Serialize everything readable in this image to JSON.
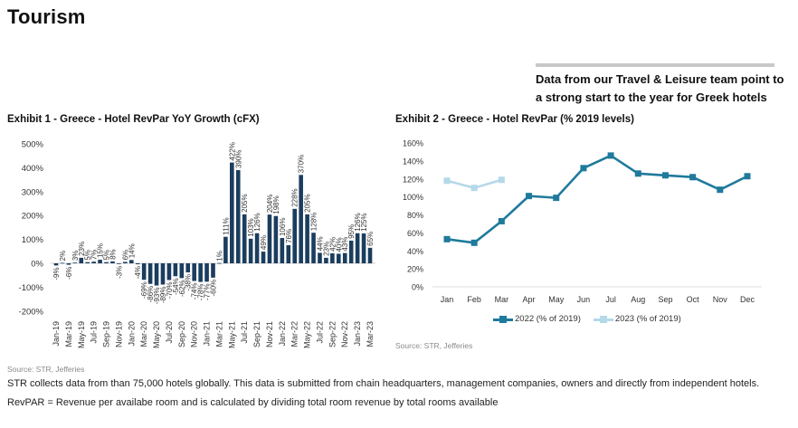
{
  "page": {
    "title": "Tourism",
    "callout": "Data from our Travel & Leisure team point to a strong start to the year for Greek hotels",
    "source_1": "Source: STR, Jefferies",
    "source_2": "Source: STR, Jefferies",
    "note": "STR collects data from than 75,000 hotels globally. This data is submitted from chain headquarters, management companies, owners and directly from independent hotels. RevPAR = Revenue per availabe room and is calculated by dividing total room revenue by total rooms available"
  },
  "colors": {
    "bar": "#1b3d5e",
    "line_2022": "#1f7a9c",
    "line_2023": "#b4d9e8",
    "callout_rule": "#c8c8c8"
  },
  "chart_data": [
    {
      "type": "bar",
      "title": "Exhibit 1 - Greece - Hotel RevPar YoY Growth (cFX)",
      "xlabel": "",
      "ylabel": "",
      "ylim": [
        -200,
        500
      ],
      "yticks": [
        500,
        400,
        300,
        200,
        100,
        0,
        -100,
        -200
      ],
      "ytick_labels": [
        "500%",
        "400%",
        "300%",
        "200%",
        "100%",
        "0%",
        "-100%",
        "-200%"
      ],
      "grid": false,
      "categories": [
        "Jan-19",
        "Feb-19",
        "Mar-19",
        "Apr-19",
        "May-19",
        "Jun-19",
        "Jul-19",
        "Aug-19",
        "Sep-19",
        "Oct-19",
        "Nov-19",
        "Dec-19",
        "Jan-20",
        "Feb-20",
        "Mar-20",
        "Apr-20",
        "May-20",
        "Jun-20",
        "Jul-20",
        "Aug-20",
        "Sep-20",
        "Oct-20",
        "Nov-20",
        "Dec-20",
        "Jan-21",
        "Feb-21",
        "Mar-21",
        "Apr-21",
        "May-21",
        "Jun-21",
        "Jul-21",
        "Aug-21",
        "Sep-21",
        "Oct-21",
        "Nov-21",
        "Dec-21",
        "Jan-22",
        "Feb-22",
        "Mar-22",
        "Apr-22",
        "May-22",
        "Jun-22",
        "Jul-22",
        "Aug-22",
        "Sep-22",
        "Oct-22",
        "Nov-22",
        "Dec-22",
        "Jan-23",
        "Feb-23",
        "Mar-23"
      ],
      "xtick_labels": [
        "Jan-19",
        "Mar-19",
        "May-19",
        "Jul-19",
        "Sep-19",
        "Nov-19",
        "Jan-20",
        "Mar-20",
        "May-20",
        "Jul-20",
        "Sep-20",
        "Nov-20",
        "Jan-21",
        "Mar-21",
        "May-21",
        "Jul-21",
        "Sep-21",
        "Nov-21",
        "Jan-22",
        "Mar-22",
        "May-22",
        "Jul-22",
        "Sep-22",
        "Nov-22",
        "Jan-23",
        "Mar-23"
      ],
      "values": [
        -9,
        2,
        -6,
        3,
        23,
        5,
        7,
        15,
        5,
        8,
        -3,
        6,
        14,
        -4,
        -69,
        -86,
        -93,
        -89,
        -70,
        -54,
        -62,
        -38,
        -74,
        -78,
        -77,
        -60,
        1,
        111,
        422,
        390,
        205,
        103,
        126,
        49,
        204,
        198,
        106,
        76,
        228,
        370,
        205,
        128,
        44,
        23,
        42,
        40,
        43,
        95,
        126,
        125,
        65
      ],
      "data_labels": [
        "-9%",
        "2%",
        "-6%",
        "3%",
        "23%",
        "5%",
        "7%",
        "15%",
        "5%",
        "8%",
        "-3%",
        "6%",
        "14%",
        "-4%",
        "-69%",
        "-86%",
        "-93%",
        "-89%",
        "-70%",
        "-54%",
        "-62%",
        "-38%",
        "-74%",
        "-78%",
        "-77%",
        "-60%",
        "1%",
        "111%",
        "422%",
        "390%",
        "205%",
        "103%",
        "126%",
        "49%",
        "204%",
        "198%",
        "106%",
        "76%",
        "228%",
        "370%",
        "205%",
        "128%",
        "44%",
        "23%",
        "42%",
        "40%",
        "43%",
        "95%",
        "126%",
        "125%",
        "65%"
      ]
    },
    {
      "type": "line",
      "title": "Exhibit 2 - Greece - Hotel RevPar (% 2019 levels)",
      "xlabel": "",
      "ylabel": "",
      "ylim": [
        0,
        160
      ],
      "yticks": [
        160,
        140,
        120,
        100,
        80,
        60,
        40,
        20,
        0
      ],
      "ytick_labels": [
        "160%",
        "140%",
        "120%",
        "100%",
        "80%",
        "60%",
        "40%",
        "20%",
        "0%"
      ],
      "grid": false,
      "legend_position": "bottom",
      "categories": [
        "Jan",
        "Feb",
        "Mar",
        "Apr",
        "May",
        "Jun",
        "Jul",
        "Aug",
        "Sep",
        "Oct",
        "Nov",
        "Dec"
      ],
      "series": [
        {
          "name": "2022 (% of 2019)",
          "values": [
            53,
            49,
            73,
            101,
            99,
            132,
            146,
            126,
            124,
            122,
            108,
            123
          ]
        },
        {
          "name": "2023 (% of 2019)",
          "values": [
            118,
            110,
            119
          ]
        }
      ]
    }
  ]
}
